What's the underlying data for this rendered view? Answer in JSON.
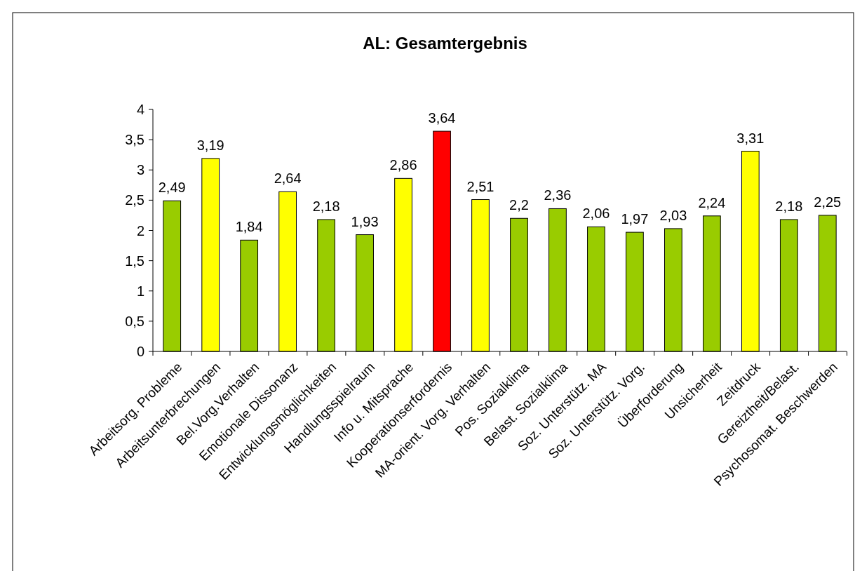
{
  "chart_data": {
    "type": "bar",
    "title": "AL: Gesamtergebnis",
    "categories": [
      "Arbeitsorg. Probleme",
      "Arbeitsunterbrechungen",
      "Bel.Vorg.Verhalten",
      "Emotionale Dissonanz",
      "Entwicklungsmöglichkeiten",
      "Handlungsspielraum",
      "Info u. Mitsprache",
      "Kooperationserfordernis",
      "MA-orient. Vorg. Verhalten",
      "Pos. Sozialklima",
      "Belast. Sozialklima",
      "Soz. Unterstütz. MA",
      "Soz. Unterstütz. Vorg.",
      "Überforderung",
      "Unsicherheit",
      "Zeitdruck",
      "Gereiztheit/Belast.",
      "Psychosomat. Beschwerden"
    ],
    "values": [
      2.49,
      3.19,
      1.84,
      2.64,
      2.18,
      1.93,
      2.86,
      3.64,
      2.51,
      2.2,
      2.36,
      2.06,
      1.97,
      2.03,
      2.24,
      3.31,
      2.18,
      2.25
    ],
    "value_labels": [
      "2,49",
      "3,19",
      "1,84",
      "2,64",
      "2,18",
      "1,93",
      "2,86",
      "3,64",
      "2,51",
      "2,2",
      "2,36",
      "2,06",
      "1,97",
      "2,03",
      "2,24",
      "3,31",
      "2,18",
      "2,25"
    ],
    "colors": [
      "#99cc00",
      "#ffff00",
      "#99cc00",
      "#ffff00",
      "#99cc00",
      "#99cc00",
      "#ffff00",
      "#ff0000",
      "#ffff00",
      "#99cc00",
      "#99cc00",
      "#99cc00",
      "#99cc00",
      "#99cc00",
      "#99cc00",
      "#ffff00",
      "#99cc00",
      "#99cc00"
    ],
    "ylim": [
      0,
      4
    ],
    "yticks": [
      0,
      {
        "value": 0.5,
        "label": "0,5"
      },
      1,
      {
        "value": 1.5,
        "label": "1,5"
      },
      2,
      {
        "value": 2.5,
        "label": "2,5"
      },
      3,
      {
        "value": 3.5,
        "label": "3,5"
      },
      4
    ],
    "grid": false
  }
}
